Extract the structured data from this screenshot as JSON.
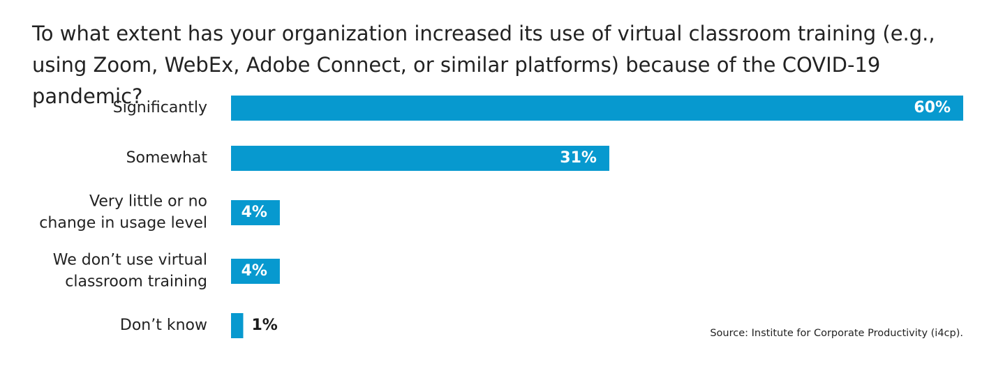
{
  "question": "To what extent has your organization increased its use of virtual classroom training (e.g., using Zoom, WebEx, Adobe Connect, or similar platforms) because of the COVID-19 pandemic?",
  "source": "Source: Institute for Corporate Productivity (i4cp).",
  "colors": {
    "bar": "#0799cf",
    "label_inside": "#ffffff",
    "label_outside": "#1a1a1a",
    "text": "#222222"
  },
  "chart_data": {
    "type": "bar",
    "orientation": "horizontal",
    "title": "To what extent has your organization increased its use of virtual classroom training (e.g., using Zoom, WebEx, Adobe Connect, or similar platforms) because of the COVID-19 pandemic?",
    "categories": [
      [
        "Significantly"
      ],
      [
        "Somewhat"
      ],
      [
        "Very little or no",
        "change in usage level"
      ],
      [
        "We don’t use virtual",
        "classroom training"
      ],
      [
        "Don’t know"
      ]
    ],
    "values": [
      60,
      31,
      4,
      4,
      1
    ],
    "value_labels": [
      "60%",
      "31%",
      "4%",
      "4%",
      "1%"
    ],
    "xlim": [
      0,
      60
    ],
    "grid": false,
    "legend": "none"
  }
}
